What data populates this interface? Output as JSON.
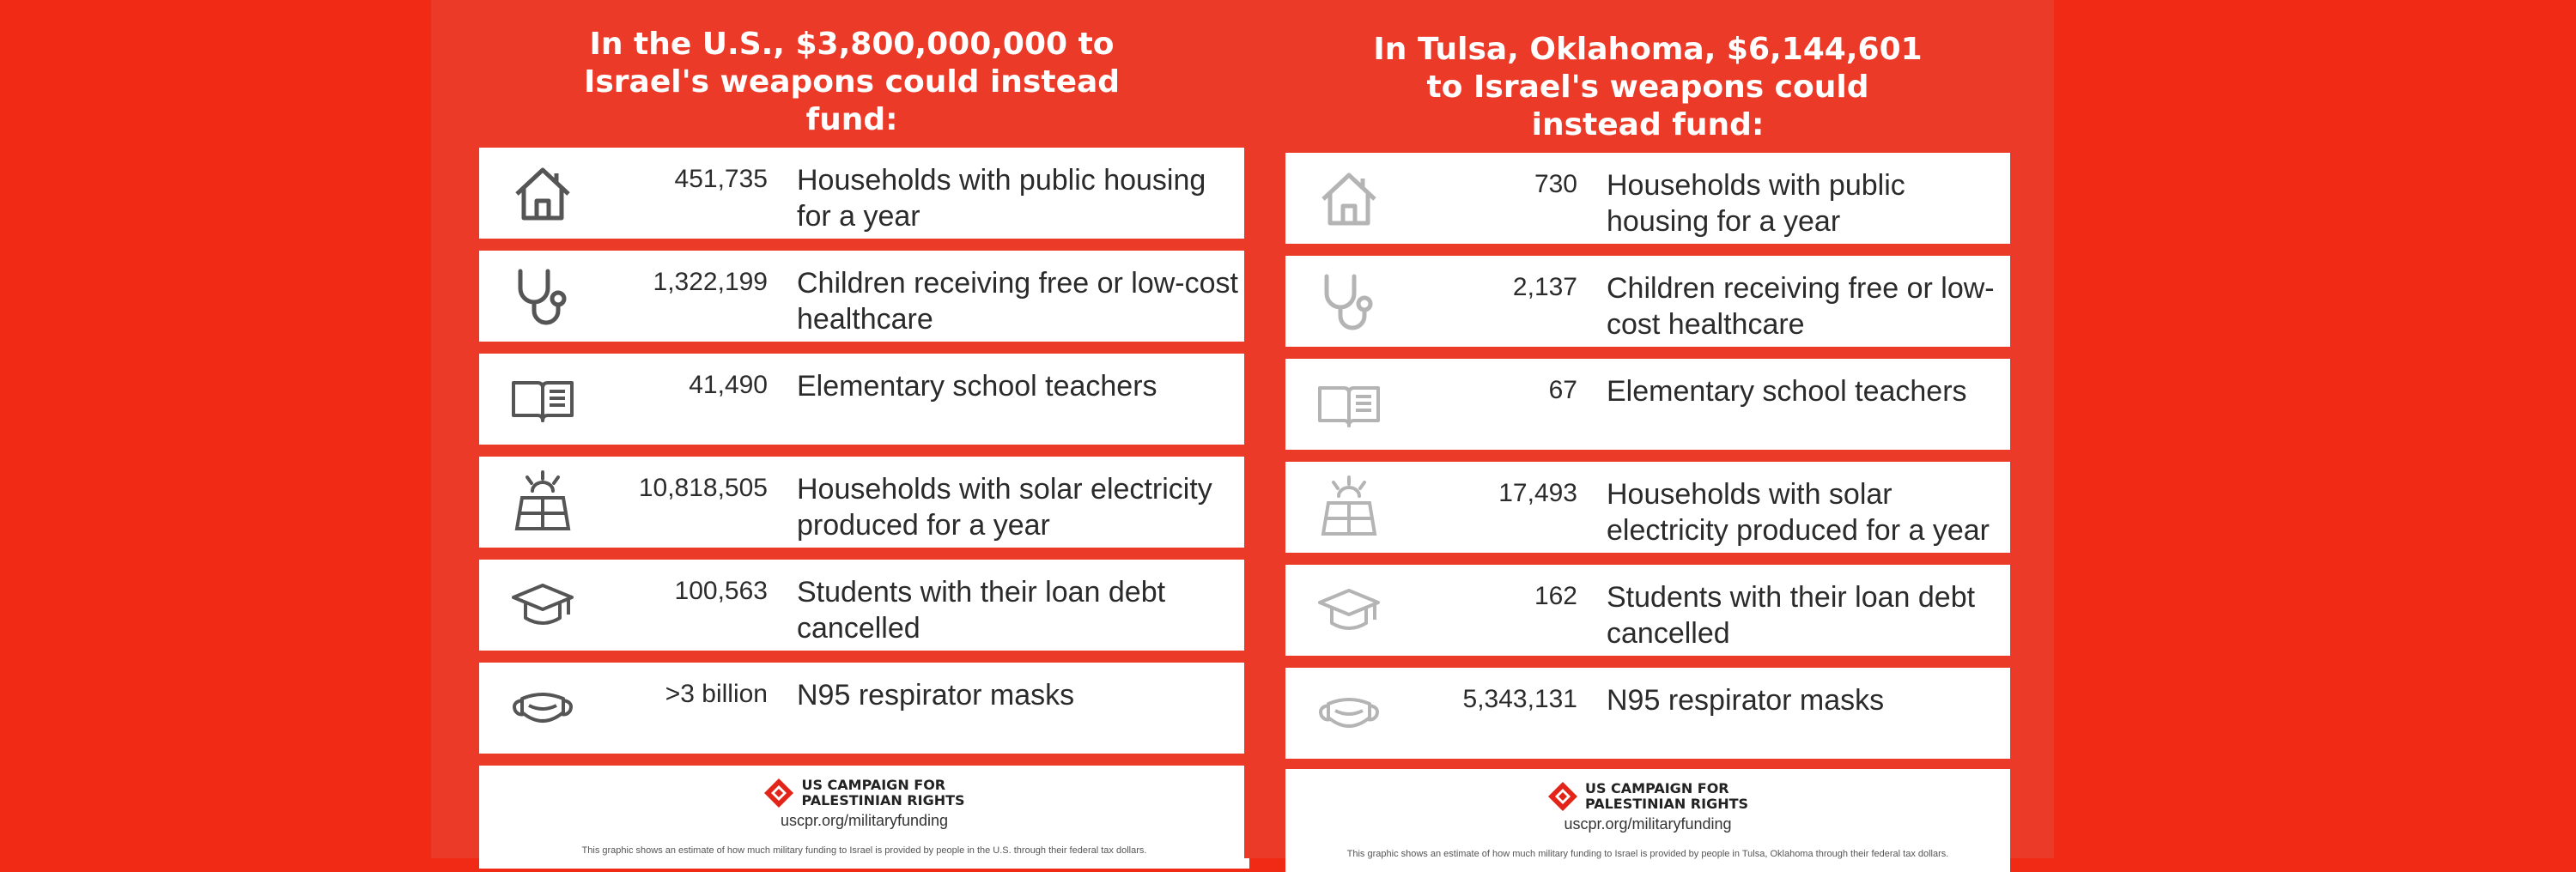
{
  "panels": [
    {
      "heading_lines": [
        "In the U.S., $3,800,000,000 to",
        "Israel's weapons could instead",
        "fund:"
      ],
      "rows": [
        {
          "icon": "house-icon",
          "number": "451,735",
          "desc": "Households with public housing for a year"
        },
        {
          "icon": "stethoscope-icon",
          "number": "1,322,199",
          "desc": "Children receiving free or low-cost healthcare"
        },
        {
          "icon": "book-icon",
          "number": "41,490",
          "desc": "Elementary school teachers"
        },
        {
          "icon": "solar-panel-icon",
          "number": "10,818,505",
          "desc": "Households with solar electricity produced for a year"
        },
        {
          "icon": "graduation-cap-icon",
          "number": "100,563",
          "desc": "Students with their loan debt cancelled"
        },
        {
          "icon": "face-mask-icon",
          "number": ">3 billion",
          "desc": "N95 respirator masks"
        }
      ],
      "footer": {
        "org_line1": "US CAMPAIGN FOR",
        "org_line2": "PALESTINIAN RIGHTS",
        "url": "uscpr.org/militaryfunding",
        "fine": "This graphic shows an estimate of how much military funding to Israel is provided by people in the U.S. through their federal tax dollars."
      }
    },
    {
      "heading_lines": [
        "In Tulsa, Oklahoma, $6,144,601",
        "to Israel's weapons could",
        "instead fund:"
      ],
      "rows": [
        {
          "icon": "house-icon",
          "number": "730",
          "desc": "Households with public housing for a year"
        },
        {
          "icon": "stethoscope-icon",
          "number": "2,137",
          "desc": "Children receiving free or low-cost healthcare"
        },
        {
          "icon": "book-icon",
          "number": "67",
          "desc": "Elementary school teachers"
        },
        {
          "icon": "solar-panel-icon",
          "number": "17,493",
          "desc": "Households with solar electricity produced for a year"
        },
        {
          "icon": "graduation-cap-icon",
          "number": "162",
          "desc": "Students with their loan debt cancelled"
        },
        {
          "icon": "face-mask-icon",
          "number": "5,343,131",
          "desc": "N95 respirator masks"
        }
      ],
      "footer": {
        "org_line1": "US CAMPAIGN FOR",
        "org_line2": "PALESTINIAN RIGHTS",
        "url": "uscpr.org/militaryfunding",
        "fine": "This graphic shows an estimate of how much military funding to Israel is provided by people in Tulsa, Oklahoma through their federal tax dollars."
      }
    }
  ],
  "colors": {
    "background": "#f02a14",
    "panel": "#ec3a28",
    "card": "#ffffff",
    "logo_red": "#e32419"
  }
}
